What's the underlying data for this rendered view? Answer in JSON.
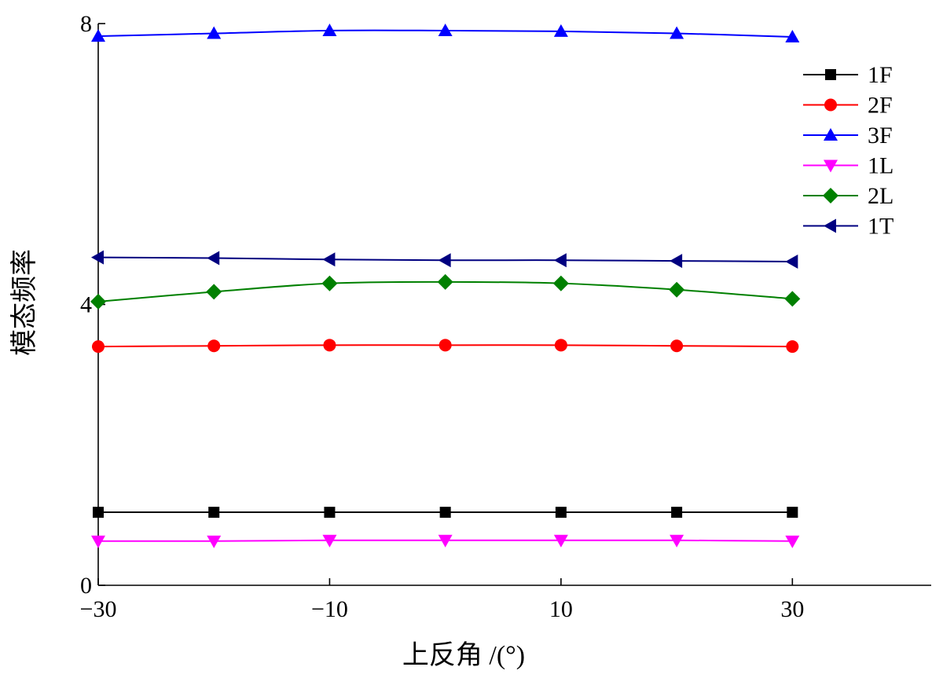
{
  "chart_data": {
    "type": "line",
    "title": "",
    "xlabel": "上反角 /(°)",
    "ylabel": "模态频率",
    "xlim": [
      -30,
      42
    ],
    "ylim": [
      0,
      8
    ],
    "x_ticks": [
      -30,
      -10,
      10,
      30
    ],
    "x_tick_labels": [
      "−30",
      "−10",
      "10",
      "30"
    ],
    "y_ticks": [
      0,
      4,
      8
    ],
    "y_tick_labels": [
      "0",
      "4",
      "8"
    ],
    "x": [
      -30,
      -20,
      -10,
      0,
      10,
      20,
      30
    ],
    "legend_position": "top-right",
    "series": [
      {
        "name": "1F",
        "color": "#000000",
        "marker": "square",
        "values": [
          1.04,
          1.04,
          1.04,
          1.04,
          1.04,
          1.04,
          1.04
        ]
      },
      {
        "name": "2F",
        "color": "#ff0000",
        "marker": "circle",
        "values": [
          3.4,
          3.41,
          3.42,
          3.42,
          3.42,
          3.41,
          3.4
        ]
      },
      {
        "name": "3F",
        "color": "#0000ff",
        "marker": "triangle-up",
        "values": [
          7.82,
          7.86,
          7.9,
          7.9,
          7.89,
          7.86,
          7.81
        ]
      },
      {
        "name": "1L",
        "color": "#ff00ff",
        "marker": "triangle-down",
        "values": [
          0.63,
          0.63,
          0.64,
          0.64,
          0.64,
          0.64,
          0.63
        ]
      },
      {
        "name": "2L",
        "color": "#008000",
        "marker": "diamond",
        "values": [
          4.04,
          4.18,
          4.3,
          4.32,
          4.3,
          4.21,
          4.08
        ]
      },
      {
        "name": "1T",
        "color": "#000080",
        "marker": "triangle-left",
        "values": [
          4.67,
          4.66,
          4.64,
          4.63,
          4.63,
          4.62,
          4.61
        ]
      }
    ]
  }
}
